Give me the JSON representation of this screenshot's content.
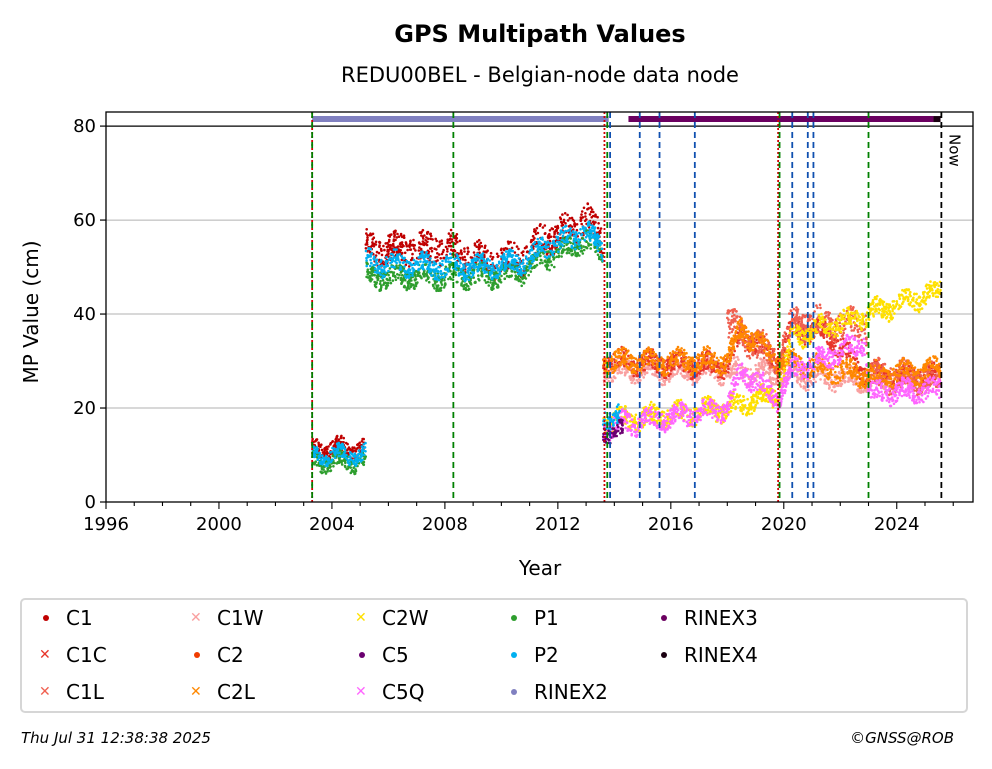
{
  "chart_data": {
    "type": "scatter",
    "title": "GPS Multipath Values",
    "subtitle": "REDU00BEL - Belgian-node data node",
    "xlabel": "Year",
    "ylabel": "MP Value (cm)",
    "xlim": [
      1996,
      2026.7
    ],
    "ylim": [
      0,
      83
    ],
    "x_ticks": [
      "1996",
      "2000",
      "2004",
      "2008",
      "2012",
      "2016",
      "2020",
      "2024"
    ],
    "y_ticks": [
      "0",
      "20",
      "40",
      "60",
      "80"
    ],
    "grid": "horizontal",
    "now_label": "Now",
    "now_x": 2025.58,
    "reference_line_y": 80,
    "colors": {
      "C1": "#c00000",
      "C1C": "#e8352a",
      "C1L": "#f06050",
      "C1W": "#f9a0a0",
      "C2": "#f03c00",
      "C2L": "#ff8800",
      "C2W": "#ffe000",
      "C5": "#6b0070",
      "C5Q": "#ff66ff",
      "P1": "#2e9e2e",
      "P2": "#00b0f0",
      "RINEX2": "#8080c0",
      "RINEX3": "#6b0060",
      "RINEX4": "#1a0010"
    },
    "series": [
      {
        "name": "C1",
        "segments": [
          {
            "x0": 2003.3,
            "x1": 2005.2,
            "y": 11.5,
            "spread": 1.5
          },
          {
            "x0": 2005.2,
            "x1": 2013.6,
            "y": 53,
            "spread": 3
          }
        ],
        "trend": [
          [
            2005.2,
            54
          ],
          [
            2008.3,
            54
          ],
          [
            2009.5,
            51
          ],
          [
            2010.8,
            52
          ],
          [
            2011.5,
            56
          ],
          [
            2012.5,
            58
          ],
          [
            2013.0,
            61
          ],
          [
            2013.6,
            55
          ]
        ]
      },
      {
        "name": "P1",
        "segments": [
          {
            "x0": 2003.3,
            "x1": 2005.2,
            "y": 8.5,
            "spread": 1.5
          },
          {
            "x0": 2005.2,
            "x1": 2013.6,
            "y": 48,
            "spread": 2
          }
        ],
        "trend": [
          [
            2005.2,
            48
          ],
          [
            2008.3,
            48
          ],
          [
            2009.5,
            48
          ],
          [
            2010.8,
            49
          ],
          [
            2011.5,
            52
          ],
          [
            2012.5,
            54
          ],
          [
            2013.0,
            56
          ],
          [
            2013.6,
            52
          ]
        ]
      },
      {
        "name": "P2",
        "segments": [
          {
            "x0": 2003.3,
            "x1": 2005.2,
            "y": 10,
            "spread": 1.5
          },
          {
            "x0": 2005.2,
            "x1": 2013.6,
            "y": 51,
            "spread": 2
          },
          {
            "x0": 2013.6,
            "x1": 2014.2,
            "y": 18,
            "spread": 2
          }
        ],
        "trend": [
          [
            2005.2,
            51
          ],
          [
            2008.3,
            50
          ],
          [
            2009.5,
            50
          ],
          [
            2010.8,
            51
          ],
          [
            2011.5,
            54
          ],
          [
            2012.5,
            56
          ],
          [
            2013.0,
            58
          ],
          [
            2013.6,
            53
          ]
        ]
      },
      {
        "name": "C1C",
        "segments": [
          {
            "x0": 2013.6,
            "x1": 2025.55,
            "y": 29,
            "spread": 2
          }
        ],
        "trend": [
          [
            2013.6,
            30
          ],
          [
            2018.0,
            29
          ],
          [
            2018.5,
            36
          ],
          [
            2019.8,
            30
          ],
          [
            2020.3,
            37
          ],
          [
            2021.5,
            36
          ],
          [
            2023.0,
            27
          ],
          [
            2025.5,
            27
          ]
        ]
      },
      {
        "name": "C1L",
        "segments": [
          {
            "x0": 2018.0,
            "x1": 2025.55,
            "y": 36,
            "spread": 3
          }
        ],
        "trend": [
          [
            2018.0,
            38
          ],
          [
            2019.8,
            30
          ],
          [
            2020.3,
            38
          ],
          [
            2022.9,
            38
          ],
          [
            2023.0,
            27
          ],
          [
            2025.5,
            26
          ]
        ]
      },
      {
        "name": "C1W",
        "segments": [
          {
            "x0": 2013.6,
            "x1": 2025.55,
            "y": 28,
            "spread": 2
          }
        ],
        "trend": [
          [
            2013.6,
            28
          ],
          [
            2018.0,
            28
          ],
          [
            2023.0,
            26
          ],
          [
            2025.5,
            26
          ]
        ]
      },
      {
        "name": "C2L",
        "segments": [
          {
            "x0": 2013.6,
            "x1": 2025.55,
            "y": 30,
            "spread": 2
          }
        ],
        "trend": [
          [
            2013.6,
            30
          ],
          [
            2018.0,
            30
          ],
          [
            2018.5,
            37
          ],
          [
            2019.8,
            30
          ],
          [
            2023.0,
            27
          ],
          [
            2025.5,
            28
          ]
        ]
      },
      {
        "name": "C2W",
        "segments": [
          {
            "x0": 2013.6,
            "x1": 2025.55,
            "y": 20,
            "spread": 2
          }
        ],
        "trend": [
          [
            2013.6,
            17
          ],
          [
            2018.0,
            20
          ],
          [
            2019.8,
            23
          ],
          [
            2020.3,
            35
          ],
          [
            2023.0,
            40
          ],
          [
            2025.5,
            45
          ]
        ]
      },
      {
        "name": "C5Q",
        "segments": [
          {
            "x0": 2013.6,
            "x1": 2025.55,
            "y": 20,
            "spread": 2
          }
        ],
        "trend": [
          [
            2013.6,
            16
          ],
          [
            2016.0,
            18
          ],
          [
            2018.0,
            20
          ],
          [
            2018.5,
            28
          ],
          [
            2019.8,
            22
          ],
          [
            2020.3,
            28
          ],
          [
            2022.9,
            34
          ],
          [
            2023.0,
            23
          ],
          [
            2025.5,
            24
          ]
        ]
      },
      {
        "name": "C5",
        "segments": [
          {
            "x0": 2013.6,
            "x1": 2014.3,
            "y": 15,
            "spread": 1.5
          }
        ],
        "trend": [
          [
            2013.6,
            15
          ],
          [
            2014.3,
            14
          ]
        ]
      },
      {
        "name": "C2",
        "segments": [],
        "trend": []
      },
      {
        "name": "RINEX2",
        "segments": [],
        "trend": []
      },
      {
        "name": "RINEX3",
        "segments": [],
        "trend": []
      },
      {
        "name": "RINEX4",
        "segments": [],
        "trend": []
      }
    ],
    "rinex_bars": [
      {
        "name": "RINEX2",
        "x0": 2003.3,
        "x1": 2013.8,
        "y": 81.5
      },
      {
        "name": "RINEX3",
        "x0": 2014.5,
        "x1": 2025.3,
        "y": 81.5
      },
      {
        "name": "RINEX4",
        "x0": 2025.3,
        "x1": 2025.55,
        "y": 81.5
      }
    ],
    "vlines": [
      {
        "x": 2003.3,
        "style": "red-dotted"
      },
      {
        "x": 2003.3,
        "style": "green-dashed"
      },
      {
        "x": 2008.3,
        "style": "green-dashed"
      },
      {
        "x": 2013.65,
        "style": "red-dotted"
      },
      {
        "x": 2013.75,
        "style": "green-dashed"
      },
      {
        "x": 2013.85,
        "style": "blue-dashed"
      },
      {
        "x": 2014.9,
        "style": "blue-dashed"
      },
      {
        "x": 2015.6,
        "style": "blue-dashed"
      },
      {
        "x": 2016.85,
        "style": "blue-dashed"
      },
      {
        "x": 2019.8,
        "style": "red-dotted"
      },
      {
        "x": 2019.85,
        "style": "green-dashed"
      },
      {
        "x": 2020.3,
        "style": "blue-dashed"
      },
      {
        "x": 2020.85,
        "style": "blue-dashed"
      },
      {
        "x": 2021.05,
        "style": "blue-dashed"
      },
      {
        "x": 2023.0,
        "style": "green-dashed"
      },
      {
        "x": 2025.58,
        "style": "black-dashed"
      }
    ]
  },
  "legend": {
    "items": [
      {
        "label": "C1",
        "marker": "dot",
        "color": "#c00000"
      },
      {
        "label": "C1C",
        "marker": "x",
        "color": "#e8352a"
      },
      {
        "label": "C1L",
        "marker": "x",
        "color": "#f06050"
      },
      {
        "label": "C1W",
        "marker": "x",
        "color": "#f9a0a0"
      },
      {
        "label": "C2",
        "marker": "dot",
        "color": "#f03c00"
      },
      {
        "label": "C2L",
        "marker": "x",
        "color": "#ff8800"
      },
      {
        "label": "C2W",
        "marker": "x",
        "color": "#ffe000"
      },
      {
        "label": "C5",
        "marker": "dot",
        "color": "#6b0070"
      },
      {
        "label": "C5Q",
        "marker": "x",
        "color": "#ff66ff"
      },
      {
        "label": "P1",
        "marker": "dot",
        "color": "#2e9e2e"
      },
      {
        "label": "P2",
        "marker": "dot",
        "color": "#00b0f0"
      },
      {
        "label": "RINEX2",
        "marker": "dot",
        "color": "#8080c0"
      },
      {
        "label": "RINEX3",
        "marker": "dot",
        "color": "#6b0060"
      },
      {
        "label": "RINEX4",
        "marker": "dot",
        "color": "#1a0010"
      }
    ]
  },
  "footer": {
    "timestamp": "Thu Jul 31 12:38:38 2025",
    "credit": "©GNSS@ROB"
  }
}
